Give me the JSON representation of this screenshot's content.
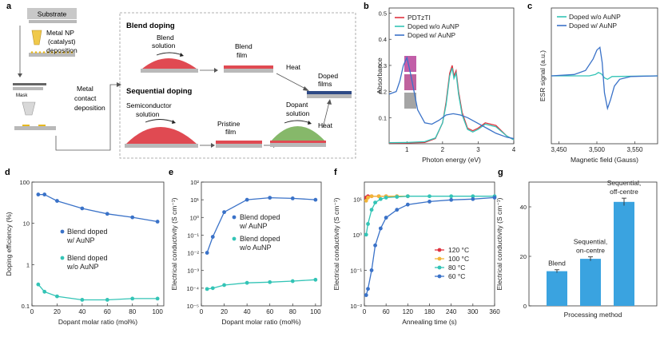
{
  "panels": {
    "a": {
      "letter": "a",
      "substrate": "Substrate",
      "np_step": [
        "Metal NP",
        "(catalyst)",
        "deposition"
      ],
      "contact_step": [
        "Metal",
        "contact",
        "deposition"
      ],
      "mask": "Mask",
      "blend_title": "Blend doping",
      "blend_solution": [
        "Blend",
        "solution"
      ],
      "blend_film": [
        "Blend",
        "film"
      ],
      "heat_top": "Heat",
      "doped_films": [
        "Doped",
        "films"
      ],
      "seq_title": "Sequential doping",
      "semi_solution": [
        "Semiconductor",
        "solution"
      ],
      "pristine_film": [
        "Pristine",
        "film"
      ],
      "dopant_solution": [
        "Dopant",
        "solution"
      ],
      "heat_bottom": "Heat"
    },
    "b": {
      "letter": "b"
    },
    "c": {
      "letter": "c"
    },
    "d": {
      "letter": "d"
    },
    "e": {
      "letter": "e"
    },
    "f": {
      "letter": "f"
    },
    "g": {
      "letter": "g"
    }
  },
  "chart_data": [
    {
      "id": "b",
      "type": "line",
      "xlabel": "Photon energy (eV)",
      "ylabel": "Absorbance",
      "xlim": [
        0.5,
        4
      ],
      "ylim": [
        0,
        0.52
      ],
      "xticks": [
        1,
        2,
        3,
        4
      ],
      "xtick_labels": [
        "1",
        "2",
        "3",
        "4"
      ],
      "yticks": [
        0.1,
        0.2,
        0.3,
        0.4,
        0.5
      ],
      "ytick_labels": [
        "0.1",
        "0.2",
        "0.3",
        "0.4",
        "0.5"
      ],
      "series": [
        {
          "name": "PDTzTI",
          "color": "#e0333f",
          "x": [
            0.5,
            1.0,
            1.5,
            1.8,
            2.0,
            2.1,
            2.2,
            2.27,
            2.32,
            2.38,
            2.45,
            2.55,
            2.7,
            2.85,
            3.0,
            3.2,
            3.5,
            3.8,
            4.0
          ],
          "y": [
            0.002,
            0.003,
            0.005,
            0.02,
            0.08,
            0.16,
            0.27,
            0.3,
            0.26,
            0.28,
            0.2,
            0.12,
            0.06,
            0.05,
            0.06,
            0.08,
            0.07,
            0.03,
            0.015
          ]
        },
        {
          "name": "Doped w/o AuNP",
          "color": "#33c4b6",
          "x": [
            0.5,
            1.0,
            1.5,
            1.8,
            2.0,
            2.1,
            2.2,
            2.27,
            2.32,
            2.38,
            2.45,
            2.55,
            2.7,
            2.85,
            3.0,
            3.2,
            3.5,
            3.8,
            4.0
          ],
          "y": [
            0.004,
            0.005,
            0.008,
            0.022,
            0.08,
            0.15,
            0.26,
            0.29,
            0.25,
            0.27,
            0.19,
            0.11,
            0.055,
            0.045,
            0.055,
            0.075,
            0.065,
            0.03,
            0.015
          ]
        },
        {
          "name": "Doped w/ AuNP",
          "color": "#3a72c8",
          "x": [
            0.5,
            0.7,
            0.8,
            0.9,
            1.0,
            1.1,
            1.3,
            1.5,
            1.7,
            1.9,
            2.1,
            2.3,
            2.5,
            2.7,
            2.9,
            3.1,
            3.3,
            3.5,
            3.8,
            4.0
          ],
          "y": [
            0.19,
            0.2,
            0.24,
            0.3,
            0.33,
            0.27,
            0.13,
            0.08,
            0.075,
            0.09,
            0.11,
            0.115,
            0.11,
            0.1,
            0.085,
            0.07,
            0.055,
            0.04,
            0.025,
            0.02
          ]
        }
      ]
    },
    {
      "id": "c",
      "type": "line",
      "xlabel": "Magnetic field (Gauss)",
      "ylabel": "ESR signal (a.u.)",
      "xlim": [
        3440,
        3580
      ],
      "ylim": [
        -1,
        1
      ],
      "xticks": [
        3450,
        3500,
        3550
      ],
      "xtick_labels": [
        "3,450",
        "3,500",
        "3,550"
      ],
      "series": [
        {
          "name": "Doped w/o AuNP",
          "color": "#33c4b6",
          "x": [
            3440,
            3490,
            3498,
            3502,
            3506,
            3510,
            3514,
            3520,
            3580
          ],
          "y": [
            0,
            0,
            0.02,
            0.05,
            0.03,
            -0.03,
            -0.05,
            -0.01,
            0
          ]
        },
        {
          "name": "Doped w/ AuNP",
          "color": "#3a72c8",
          "x": [
            3440,
            3470,
            3485,
            3495,
            3500,
            3504,
            3507,
            3510,
            3514,
            3518,
            3523,
            3530,
            3545,
            3580
          ],
          "y": [
            0,
            0.02,
            0.08,
            0.25,
            0.38,
            0.42,
            0.2,
            -0.25,
            -0.48,
            -0.35,
            -0.15,
            -0.05,
            -0.01,
            0
          ]
        }
      ]
    },
    {
      "id": "d",
      "type": "line",
      "yscale": "log",
      "xlabel": "Dopant molar ratio (mol%)",
      "ylabel": "Doping efficiency (%)",
      "xlim": [
        0,
        105
      ],
      "ylim": [
        0.1,
        100
      ],
      "xticks": [
        0,
        20,
        40,
        60,
        80,
        100
      ],
      "xtick_labels": [
        "0",
        "20",
        "40",
        "60",
        "80",
        "100"
      ],
      "yticks": [
        0.1,
        1,
        10,
        100
      ],
      "ytick_labels": [
        "0.1",
        "1",
        "10",
        "100"
      ],
      "series": [
        {
          "name": "Blend doped w/ AuNP",
          "label_lines": [
            "Blend doped",
            "w/ AuNP"
          ],
          "color": "#3a72c8",
          "x": [
            5,
            10,
            20,
            40,
            60,
            80,
            100
          ],
          "y": [
            50,
            50,
            35,
            23,
            17,
            14,
            11
          ]
        },
        {
          "name": "Blend doped w/o AuNP",
          "label_lines": [
            "Blend doped",
            "w/o AuNP"
          ],
          "color": "#33c4b6",
          "x": [
            5,
            10,
            20,
            40,
            60,
            80,
            100
          ],
          "y": [
            0.33,
            0.22,
            0.17,
            0.14,
            0.14,
            0.15,
            0.15
          ]
        }
      ]
    },
    {
      "id": "e",
      "type": "line",
      "yscale": "log",
      "xlabel": "Dopant molar ratio (mol%)",
      "ylabel": "Electrical conductivity (S cm⁻¹)",
      "xlim": [
        0,
        105
      ],
      "ylim": [
        1e-05,
        100
      ],
      "xticks": [
        0,
        20,
        40,
        60,
        80,
        100
      ],
      "xtick_labels": [
        "0",
        "20",
        "40",
        "60",
        "80",
        "100"
      ],
      "yticks": [
        1e-05,
        0.0001,
        0.001,
        0.01,
        0.1,
        1,
        10,
        100
      ],
      "ytick_labels": [
        "10⁻⁵",
        "10⁻⁴",
        "10⁻³",
        "10⁻²",
        "10⁻¹",
        "10⁰",
        "10¹",
        "10²"
      ],
      "series": [
        {
          "name": "Blend doped w/ AuNP",
          "label_lines": [
            "Blend doped",
            "w/ AuNP"
          ],
          "color": "#3a72c8",
          "x": [
            5,
            10,
            20,
            40,
            60,
            80,
            100
          ],
          "y": [
            0.01,
            0.08,
            2,
            10,
            13,
            12,
            10
          ]
        },
        {
          "name": "Blend doped w/o AuNP",
          "label_lines": [
            "Blend doped",
            "w/o AuNP"
          ],
          "color": "#33c4b6",
          "x": [
            5,
            10,
            20,
            40,
            60,
            80,
            100
          ],
          "y": [
            9e-05,
            0.0001,
            0.00015,
            0.0002,
            0.00022,
            0.00025,
            0.0003
          ]
        }
      ]
    },
    {
      "id": "f",
      "type": "line",
      "yscale": "log",
      "xlabel": "Annealing time (s)",
      "ylabel": "Electrical conductivity (S cm⁻¹)",
      "xlim": [
        0,
        360
      ],
      "ylim": [
        0.01,
        30
      ],
      "xticks": [
        0,
        60,
        120,
        180,
        240,
        300,
        360
      ],
      "xtick_labels": [
        "0",
        "60",
        "120",
        "180",
        "240",
        "300",
        "360"
      ],
      "yticks": [
        0.01,
        0.1,
        1,
        10
      ],
      "ytick_labels": [
        "10⁻²",
        "10⁻¹",
        "10⁰",
        "10¹"
      ],
      "series": [
        {
          "name": "120 °C",
          "color": "#e0333f",
          "x": [
            5,
            10,
            20,
            40,
            60,
            90,
            120
          ],
          "y": [
            11,
            12,
            12,
            12,
            12,
            12,
            12
          ]
        },
        {
          "name": "100 °C",
          "color": "#f2b538",
          "x": [
            5,
            10,
            20,
            40,
            60,
            90,
            120
          ],
          "y": [
            9,
            11,
            12,
            12,
            12,
            12,
            12
          ]
        },
        {
          "name": "80 °C",
          "color": "#33c4b6",
          "x": [
            5,
            10,
            20,
            30,
            45,
            60,
            90,
            120,
            180,
            240,
            300,
            360
          ],
          "y": [
            1,
            2,
            5,
            8,
            10,
            11,
            11.5,
            12,
            12,
            12,
            12,
            12
          ]
        },
        {
          "name": "60 °C",
          "color": "#3a72c8",
          "x": [
            5,
            10,
            20,
            30,
            45,
            60,
            90,
            120,
            180,
            240,
            300,
            360
          ],
          "y": [
            0.02,
            0.03,
            0.1,
            0.5,
            1.5,
            3,
            5,
            7,
            8.5,
            9.5,
            10,
            11
          ]
        }
      ]
    },
    {
      "id": "g",
      "type": "bar",
      "xlabel": "Processing method",
      "ylabel": "Electrical conductivity (S cm⁻¹)",
      "ylim": [
        0,
        50
      ],
      "yticks": [
        0,
        20,
        40
      ],
      "ytick_labels": [
        "0",
        "20",
        "40"
      ],
      "categories": [
        "Blend",
        "Sequential, on-centre",
        "Sequential, off-centre"
      ],
      "category_label_lines": [
        [
          "Blend"
        ],
        [
          "Sequential,",
          "on-centre"
        ],
        [
          "Sequential,",
          "off-centre"
        ]
      ],
      "values": [
        14,
        19,
        42
      ],
      "errors": [
        0.6,
        0.8,
        1.5
      ],
      "color": "#3aa3e0"
    }
  ]
}
